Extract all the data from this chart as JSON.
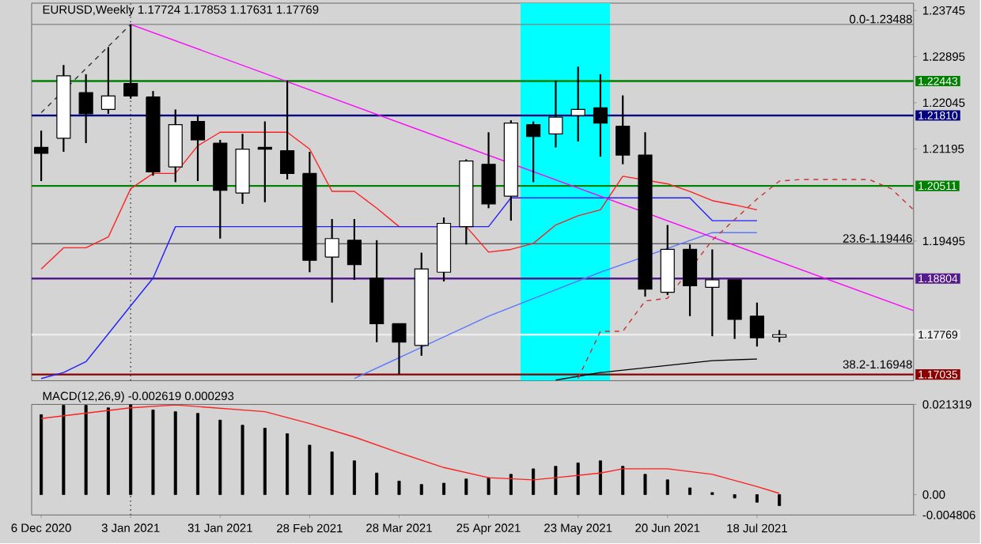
{
  "chart_data": [
    {
      "type": "candlestick",
      "title": "EURUSD,Weekly  1.17724 1.17853 1.17631 1.17769",
      "x": [
        "2020-12-06",
        "2020-12-13",
        "2020-12-20",
        "2020-12-27",
        "2021-01-03",
        "2021-01-10",
        "2021-01-17",
        "2021-01-24",
        "2021-01-31",
        "2021-02-07",
        "2021-02-14",
        "2021-02-21",
        "2021-02-28",
        "2021-03-07",
        "2021-03-14",
        "2021-03-21",
        "2021-03-28",
        "2021-04-04",
        "2021-04-11",
        "2021-04-18",
        "2021-04-25",
        "2021-05-02",
        "2021-05-09",
        "2021-05-16",
        "2021-05-23",
        "2021-05-30",
        "2021-06-06",
        "2021-06-13",
        "2021-06-20",
        "2021-06-27",
        "2021-07-04",
        "2021-07-11",
        "2021-07-18",
        "2021-07-25"
      ],
      "ohlc": [
        [
          1.2122,
          1.2153,
          1.206,
          1.2111
        ],
        [
          1.2139,
          1.2274,
          1.2114,
          1.2254
        ],
        [
          1.2223,
          1.2257,
          1.213,
          1.2184
        ],
        [
          1.2192,
          1.2307,
          1.2184,
          1.2217
        ],
        [
          1.224,
          1.23488,
          1.2212,
          1.2217
        ],
        [
          1.2215,
          1.2226,
          1.207,
          1.2077
        ],
        [
          1.2086,
          1.2192,
          1.2058,
          1.2164
        ],
        [
          1.217,
          1.2181,
          1.206,
          1.2136
        ],
        [
          1.213,
          1.2136,
          1.1954,
          1.2043
        ],
        [
          1.2038,
          1.2147,
          1.2018,
          1.2119
        ],
        [
          1.2122,
          1.217,
          1.2021,
          1.2119
        ],
        [
          1.2116,
          1.2245,
          1.2063,
          1.2074
        ],
        [
          1.2074,
          1.2114,
          1.1892,
          1.1914
        ],
        [
          1.192,
          1.199,
          1.1836,
          1.1954
        ],
        [
          1.1951,
          1.199,
          1.1878,
          1.1906
        ],
        [
          1.1881,
          1.1951,
          1.1763,
          1.1797
        ],
        [
          1.1797,
          1.1797,
          1.1704,
          1.1763
        ],
        [
          1.1757,
          1.1928,
          1.1738,
          1.1898
        ],
        [
          1.1892,
          1.1993,
          1.1875,
          1.1982
        ],
        [
          1.1976,
          1.21,
          1.1943,
          1.2097
        ],
        [
          1.2091,
          1.215,
          1.201,
          1.2018
        ],
        [
          1.2032,
          1.2172,
          1.1987,
          1.2167
        ],
        [
          1.2164,
          1.217,
          1.2058,
          1.2142
        ],
        [
          1.2147,
          1.2245,
          1.2122,
          1.2178
        ],
        [
          1.2181,
          1.2271,
          1.2133,
          1.2192
        ],
        [
          1.2195,
          1.2257,
          1.2105,
          1.2167
        ],
        [
          1.2161,
          1.2218,
          1.2091,
          1.2108
        ],
        [
          1.2108,
          1.215,
          1.1847,
          1.1861
        ],
        [
          1.1855,
          1.1979,
          1.185,
          1.1934
        ],
        [
          1.1934,
          1.1943,
          1.1811,
          1.1867
        ],
        [
          1.1864,
          1.1934,
          1.1774,
          1.1878
        ],
        [
          1.1878,
          1.1878,
          1.1769,
          1.1805
        ],
        [
          1.1811,
          1.1836,
          1.1755,
          1.1771
        ],
        [
          1.17724,
          1.17853,
          1.17631,
          1.17769
        ]
      ],
      "xlim": [
        "2020-12-03",
        "2021-09-05"
      ],
      "ylim": [
        1.1692,
        1.2388
      ],
      "yticks": [
        1.23745,
        1.22895,
        1.22045,
        1.21195,
        1.19495
      ],
      "tick_labels": "y",
      "series": [
        {
          "type": "line",
          "color": "#ff2020",
          "x": [
            "2020-12-06",
            "2020-12-13",
            "2020-12-20",
            "2020-12-27",
            "2021-01-03",
            "2021-01-10",
            "2021-01-17",
            "2021-01-24",
            "2021-01-31",
            "2021-02-21",
            "2021-02-28",
            "2021-03-07",
            "2021-03-14",
            "2021-03-21",
            "2021-03-28",
            "2021-04-18",
            "2021-04-25",
            "2021-05-02",
            "2021-05-09",
            "2021-05-16",
            "2021-05-23",
            "2021-05-30",
            "2021-06-06",
            "2021-06-13",
            "2021-06-20",
            "2021-06-27",
            "2021-07-04",
            "2021-07-11",
            "2021-07-18"
          ],
          "values": [
            1.1898,
            1.1937,
            1.1937,
            1.1957,
            1.2046,
            1.2074,
            1.2074,
            1.2125,
            1.215,
            1.215,
            1.2119,
            1.2041,
            1.2041,
            1.201,
            1.1976,
            1.1976,
            1.1929,
            1.1934,
            1.1945,
            1.1979,
            1.1996,
            1.2007,
            1.2069,
            null,
            1.2055,
            1.2041,
            1.2024,
            1.2016,
            1.2007
          ]
        },
        {
          "type": "line",
          "color": "#2020ff",
          "x": [
            "2020-12-06",
            "2020-12-13",
            "2020-12-20",
            "2021-01-03",
            "2021-01-10",
            "2021-01-17",
            "2021-04-25",
            "2021-05-02",
            "2021-06-27",
            "2021-07-04",
            "2021-07-18"
          ],
          "values": [
            1.1696,
            1.1707,
            1.1727,
            1.183,
            1.1881,
            1.1976,
            1.1976,
            1.2029,
            1.2029,
            1.1987,
            1.1987
          ]
        },
        {
          "type": "line",
          "color": "#5a78ff",
          "x": [
            "2021-03-14",
            "2021-04-25",
            "2021-05-30",
            "2021-06-13",
            "2021-07-04",
            "2021-07-18"
          ],
          "values": [
            1.1696,
            1.1811,
            1.1892,
            null,
            1.1965,
            1.1965
          ]
        },
        {
          "type": "line",
          "color": "#000000",
          "x": [
            "2021-05-16",
            "2021-05-30",
            "2021-07-04",
            "2021-07-18"
          ],
          "values": [
            1.1693,
            1.1707,
            1.1729,
            1.1732
          ]
        },
        {
          "type": "line",
          "color": "#ff00ff",
          "x": [
            "2021-01-03",
            "2021-09-05"
          ],
          "values": [
            1.23488,
            1.1821
          ]
        },
        {
          "type": "line",
          "color": "#303030",
          "line_style": "dashed",
          "x": [
            "2020-12-06",
            "2021-01-03"
          ],
          "values": [
            1.2186,
            1.23488
          ]
        },
        {
          "type": "line",
          "color": "#c83232",
          "line_style": "dashed",
          "x": [
            "2021-05-23",
            "2021-05-30",
            "2021-06-06",
            "2021-06-13",
            "2021-06-20",
            "2021-07-04",
            "2021-07-18",
            "2021-07-25",
            "2021-08-01",
            "2021-08-22",
            "2021-08-29",
            "2021-09-05"
          ],
          "values": [
            1.1696,
            1.1783,
            1.1783,
            1.1839,
            1.1844,
            1.1951,
            1.2027,
            1.206,
            1.2063,
            1.2063,
            1.2046,
            1.2007
          ]
        }
      ],
      "bands": [
        {
          "axis": "x",
          "from": "2021-05-05",
          "to": "2021-06-02",
          "color": "#00ffff"
        }
      ],
      "ref_lines": [
        {
          "axis": "x",
          "value": "2021-01-03",
          "color": "#505050",
          "line_style": "dotted"
        },
        {
          "axis": "y",
          "value": 1.23488,
          "color": "#808080"
        },
        {
          "axis": "y",
          "value": 1.19446,
          "color": "#606060"
        },
        {
          "axis": "y",
          "value": 1.22443,
          "label": "1.22443",
          "color": "#008000"
        },
        {
          "axis": "y",
          "value": 1.2181,
          "label": "1.21810",
          "color": "#000080"
        },
        {
          "axis": "y",
          "value": 1.20511,
          "label": "1.20511",
          "color": "#008000"
        },
        {
          "axis": "y",
          "value": 1.18804,
          "label": "1.18804",
          "color": "#551a8b"
        },
        {
          "axis": "y",
          "value": 1.17769,
          "label": "1.17769",
          "color": "#ececec"
        },
        {
          "axis": "y",
          "value": 1.17035,
          "label": "1.17035",
          "color": "#8b0000"
        }
      ],
      "annotations": [
        {
          "text": "0.0-1.23488",
          "x": "2021-09-05",
          "y": 1.23488
        },
        {
          "text": "23.6-1.19446",
          "x": "2021-09-05",
          "y": 1.19446
        },
        "38.2-1.16948"
      ]
    },
    {
      "type": "bar",
      "title": "MACD(12,26,9) -0.002619 0.000293",
      "x": [
        "2020-12-06",
        "2020-12-13",
        "2020-12-20",
        "2020-12-27",
        "2021-01-03",
        "2021-01-10",
        "2021-01-17",
        "2021-01-24",
        "2021-01-31",
        "2021-02-07",
        "2021-02-14",
        "2021-02-21",
        "2021-02-28",
        "2021-03-07",
        "2021-03-14",
        "2021-03-21",
        "2021-03-28",
        "2021-04-04",
        "2021-04-11",
        "2021-04-18",
        "2021-04-25",
        "2021-05-02",
        "2021-05-09",
        "2021-05-16",
        "2021-05-23",
        "2021-05-30",
        "2021-06-06",
        "2021-06-13",
        "2021-06-20",
        "2021-06-27",
        "2021-07-04",
        "2021-07-11",
        "2021-07-18",
        "2021-07-25"
      ],
      "series": [
        {
          "type": "bar",
          "color": "#000000",
          "values": [
            0.0189,
            0.0211,
            0.0211,
            0.0205,
            0.0213,
            0.02,
            0.0196,
            0.0192,
            0.0176,
            0.0164,
            0.0157,
            0.0144,
            0.0117,
            0.0101,
            0.008,
            0.0051,
            0.0032,
            0.0024,
            0.0027,
            0.0037,
            0.004,
            0.0048,
            0.0061,
            0.0067,
            0.0075,
            0.008,
            0.0067,
            0.0048,
            0.0035,
            0.0016,
            0.0005,
            -0.0008,
            -0.0018,
            -0.002619
          ]
        },
        {
          "type": "line",
          "color": "#ff2020",
          "x": [
            "2020-12-06",
            "2021-01-03",
            "2021-01-17",
            "2021-02-14",
            "2021-02-28",
            "2021-03-14",
            "2021-03-28",
            "2021-04-11",
            "2021-04-25",
            "2021-05-09",
            "2021-05-16",
            "2021-05-30",
            "2021-06-06",
            "2021-06-20",
            "2021-07-04",
            "2021-07-18",
            "2021-07-25"
          ],
          "values": [
            0.018,
            0.0205,
            0.0212,
            0.0196,
            0.0168,
            0.0136,
            0.0099,
            0.0064,
            0.004,
            0.0035,
            0.004,
            0.0051,
            0.0061,
            0.0061,
            0.0048,
            0.0019,
            0.000293
          ]
        }
      ],
      "xlim": [
        "2020-12-03",
        "2021-09-05"
      ],
      "ylim": [
        -0.004806,
        0.021319
      ],
      "xticks": [
        {
          "value": "2020-12-06",
          "label": "6 Dec 2020"
        },
        {
          "value": "2021-01-03",
          "label": "3 Jan 2021"
        },
        {
          "value": "2021-01-31",
          "label": "31 Jan 2021"
        },
        {
          "value": "2021-02-28",
          "label": "28 Feb 2021"
        },
        {
          "value": "2021-03-28",
          "label": "28 Mar 2021"
        },
        {
          "value": "2021-04-25",
          "label": "25 Apr 2021"
        },
        {
          "value": "2021-05-23",
          "label": "23 May 2021"
        },
        {
          "value": "2021-06-20",
          "label": "20 Jun 2021"
        },
        {
          "value": "2021-07-18",
          "label": "18 Jul 2021"
        }
      ],
      "yticks": [
        0.021319,
        {
          "value": 0,
          "label": "0.00"
        },
        -0.004806
      ],
      "ref_lines": [
        {
          "axis": "x",
          "value": "2021-01-03",
          "color": "#505050",
          "line_style": "dotted"
        }
      ]
    }
  ]
}
